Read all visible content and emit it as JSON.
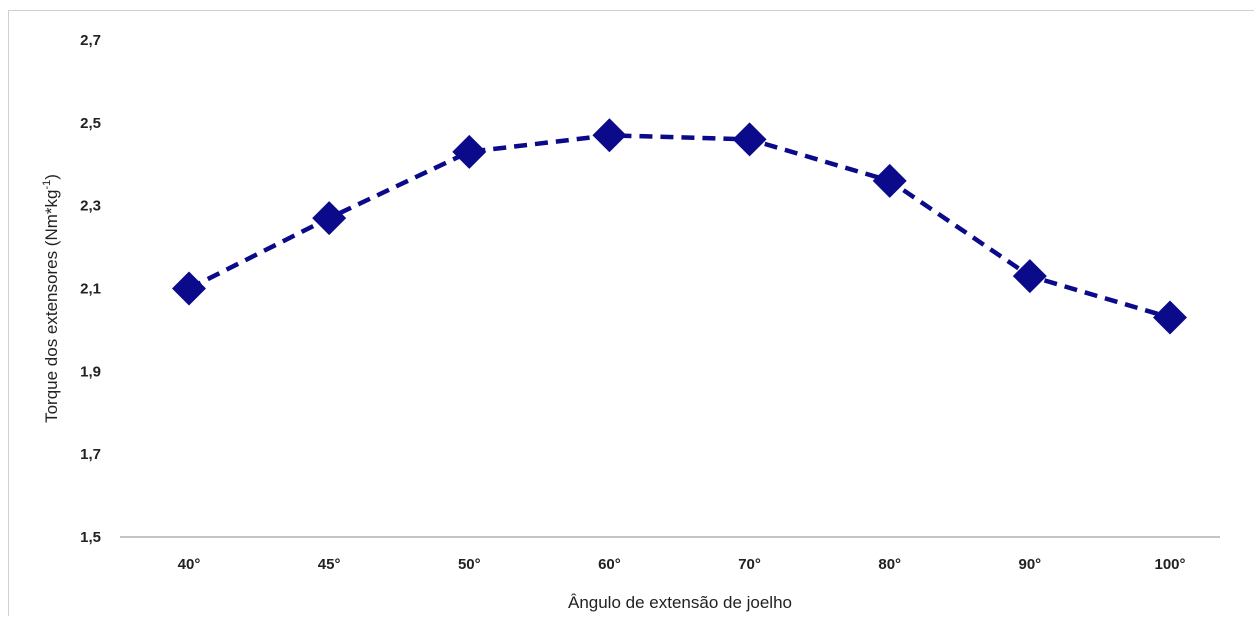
{
  "colors": {
    "series": "#0a0a8a",
    "axis": "#333333",
    "text": "#222222"
  },
  "chart_data": {
    "type": "line",
    "title": "",
    "xlabel": "Ângulo de extensão de joelho",
    "ylabel_main": "Torque dos extensores (Nm*kg",
    "ylabel_sup": "-1",
    "ylabel_end": ")",
    "categories": [
      "40°",
      "45°",
      "50°",
      "60°",
      "70°",
      "80°",
      "90°",
      "100°"
    ],
    "series": [
      {
        "values": [
          2.1,
          2.27,
          2.43,
          2.47,
          2.46,
          2.36,
          2.13,
          2.03
        ],
        "line_style": "dashed",
        "marker": "diamond"
      }
    ],
    "ylim": [
      1.5,
      2.7
    ],
    "yticks": [
      "2,7",
      "2,5",
      "2,3",
      "2,1",
      "1,9",
      "1,7",
      "1,5"
    ],
    "ytick_values": [
      2.7,
      2.5,
      2.3,
      2.1,
      1.9,
      1.7,
      1.5
    ],
    "grid": false,
    "legend": "none"
  }
}
